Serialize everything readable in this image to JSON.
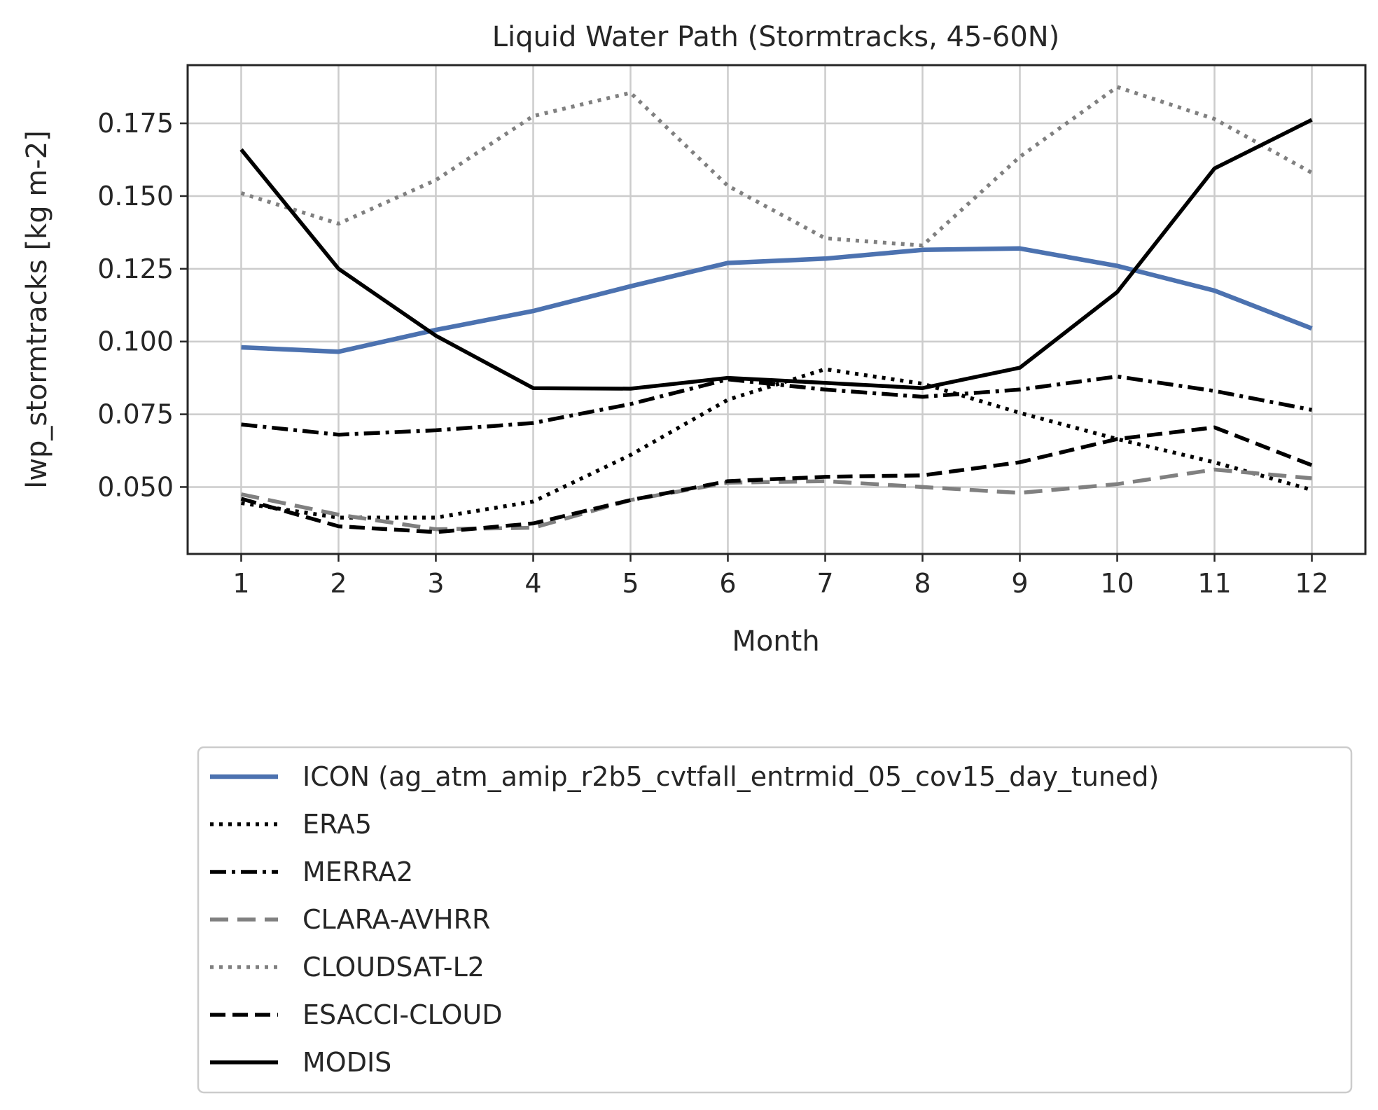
{
  "chart_data": {
    "type": "line",
    "title": "Liquid Water Path (Stormtracks, 45-60N)",
    "xlabel": "Month",
    "ylabel": "lwp_stormtracks [kg m-2]",
    "x": [
      1,
      2,
      3,
      4,
      5,
      6,
      7,
      8,
      9,
      10,
      11,
      12
    ],
    "xlim": [
      0.45,
      12.55
    ],
    "ylim": [
      0.027,
      0.195
    ],
    "yticks": [
      0.05,
      0.075,
      0.1,
      0.125,
      0.15,
      0.175
    ],
    "ytick_labels": [
      "0.050",
      "0.075",
      "0.100",
      "0.125",
      "0.150",
      "0.175"
    ],
    "xtick_labels": [
      "1",
      "2",
      "3",
      "4",
      "5",
      "6",
      "7",
      "8",
      "9",
      "10",
      "11",
      "12"
    ],
    "grid": true,
    "legend_position": "below",
    "series": [
      {
        "name": "ICON (ag_atm_amip_r2b5_cvtfall_entrmid_05_cov15_day_tuned)",
        "color": "#4c72b0",
        "style": "solid",
        "values": [
          0.098,
          0.0965,
          0.104,
          0.1105,
          0.119,
          0.127,
          0.1285,
          0.1315,
          0.132,
          0.126,
          0.1175,
          0.1045
        ]
      },
      {
        "name": "ERA5",
        "color": "#000000",
        "style": "dotted",
        "values": [
          0.0445,
          0.0395,
          0.0395,
          0.045,
          0.061,
          0.08,
          0.0905,
          0.0855,
          0.0755,
          0.0665,
          0.0585,
          0.049
        ]
      },
      {
        "name": "MERRA2",
        "color": "#000000",
        "style": "dashdot",
        "values": [
          0.0715,
          0.068,
          0.0695,
          0.072,
          0.0785,
          0.087,
          0.0835,
          0.081,
          0.0835,
          0.088,
          0.083,
          0.0765
        ]
      },
      {
        "name": "CLARA-AVHRR",
        "color": "#808080",
        "style": "dashed-long",
        "values": [
          0.0475,
          0.0405,
          0.0355,
          0.036,
          0.0455,
          0.0515,
          0.052,
          0.05,
          0.048,
          0.051,
          0.056,
          0.053
        ]
      },
      {
        "name": "CLOUDSAT-L2",
        "color": "#808080",
        "style": "dotted",
        "values": [
          0.151,
          0.1405,
          0.1555,
          0.1775,
          0.1855,
          0.1535,
          0.1355,
          0.133,
          0.1635,
          0.1875,
          0.1765,
          0.158
        ]
      },
      {
        "name": "ESACCI-CLOUD",
        "color": "#000000",
        "style": "dashed",
        "values": [
          0.046,
          0.0365,
          0.0345,
          0.0375,
          0.0455,
          0.052,
          0.0535,
          0.054,
          0.0585,
          0.0665,
          0.0705,
          0.0575
        ]
      },
      {
        "name": "MODIS",
        "color": "#000000",
        "style": "solid",
        "values": [
          0.166,
          0.125,
          0.102,
          0.084,
          0.0838,
          0.0875,
          0.0858,
          0.084,
          0.091,
          0.117,
          0.1595,
          0.1762
        ]
      }
    ]
  }
}
